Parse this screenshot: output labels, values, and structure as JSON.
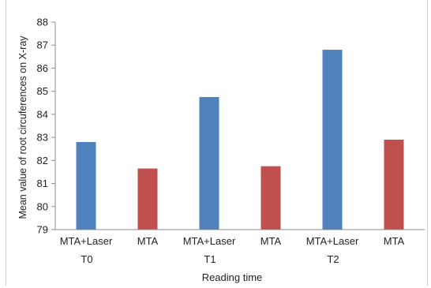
{
  "chart_data": {
    "type": "bar",
    "title": "",
    "xlabel": "Reading time",
    "ylabel": "Mean value of root circuferences on X-ray",
    "ylim": [
      79,
      88
    ],
    "yticks": [
      79,
      80,
      81,
      82,
      83,
      84,
      85,
      86,
      87,
      88
    ],
    "grid": false,
    "legend": "none",
    "bars": [
      {
        "label": "MTA+Laser",
        "value": 82.8,
        "color": "#4f81bd"
      },
      {
        "label": "MTA",
        "value": 81.65,
        "color": "#c0504d"
      },
      {
        "label": "MTA+Laser",
        "value": 84.75,
        "color": "#4f81bd"
      },
      {
        "label": "MTA",
        "value": 81.75,
        "color": "#c0504d"
      },
      {
        "label": "MTA+Laser",
        "value": 86.8,
        "color": "#4f81bd"
      },
      {
        "label": "MTA",
        "value": 82.9,
        "color": "#c0504d"
      }
    ],
    "groups": [
      {
        "label": "T0",
        "bars": [
          0,
          1
        ]
      },
      {
        "label": "T1",
        "bars": [
          2,
          3
        ]
      },
      {
        "label": "T2",
        "bars": [
          4,
          5
        ]
      }
    ]
  }
}
